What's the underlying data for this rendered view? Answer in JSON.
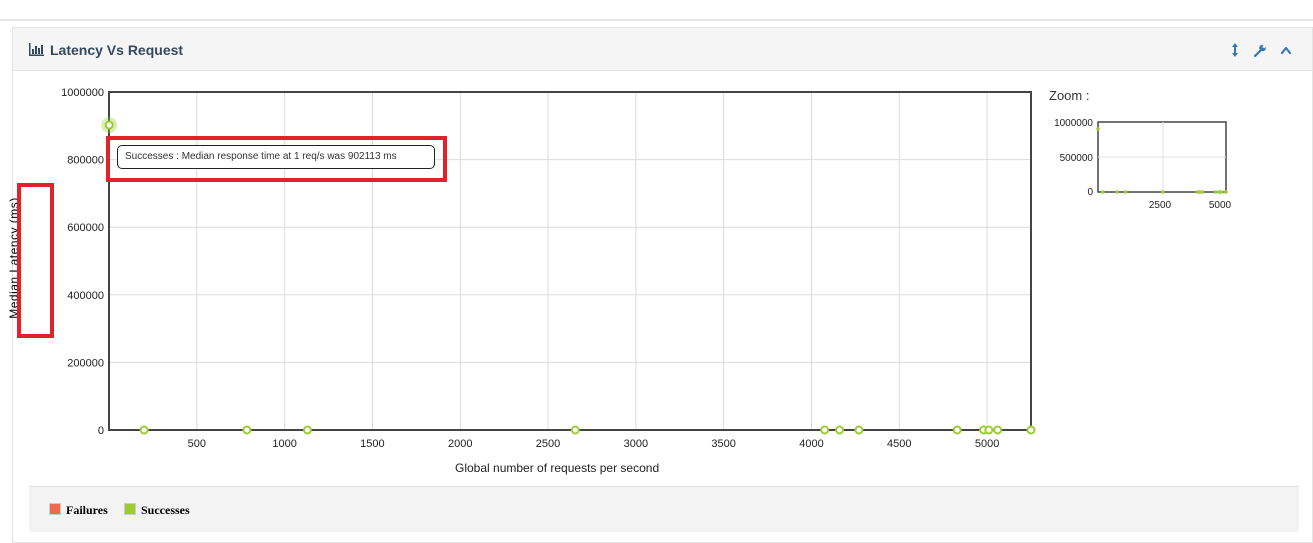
{
  "panel": {
    "title": "Latency Vs Request",
    "title_icon": "bar-chart-icon",
    "header_buttons": [
      "resize-vertical-icon",
      "wrench-icon",
      "chevron-up-icon"
    ],
    "accent_color": "#337ab7"
  },
  "tooltip": {
    "text": "Successes : Median response time at 1 req/s was 902113 ms"
  },
  "zoom": {
    "label": "Zoom :",
    "y_ticks": [
      "1000000",
      "500000",
      "0"
    ],
    "x_ticks": [
      "2500",
      "5000"
    ]
  },
  "legend": {
    "failures": "Failures",
    "successes": "Successes",
    "failures_color": "#f0684e",
    "successes_color": "#9acd32"
  },
  "chart_data": {
    "type": "scatter",
    "title": "Latency Vs Request",
    "xlabel": "Global number of requests per second",
    "ylabel": "Median Latency (ms)",
    "xlim": [
      0,
      5250
    ],
    "ylim": [
      0,
      1000000
    ],
    "x_ticks": [
      500,
      1000,
      1500,
      2000,
      2500,
      3000,
      3500,
      4000,
      4500,
      5000
    ],
    "y_ticks": [
      0,
      200000,
      400000,
      600000,
      800000,
      1000000
    ],
    "grid": true,
    "legend": "bottom-left",
    "series": [
      {
        "name": "Failures",
        "color": "#f0684e",
        "points": []
      },
      {
        "name": "Successes",
        "color": "#9acd32",
        "points": [
          {
            "x": 1,
            "y": 902113
          },
          {
            "x": 200,
            "y": 0
          },
          {
            "x": 785,
            "y": 0
          },
          {
            "x": 1130,
            "y": 0
          },
          {
            "x": 2655,
            "y": 0
          },
          {
            "x": 4075,
            "y": 0
          },
          {
            "x": 4160,
            "y": 0
          },
          {
            "x": 4270,
            "y": 0
          },
          {
            "x": 4830,
            "y": 0
          },
          {
            "x": 4980,
            "y": 0
          },
          {
            "x": 5010,
            "y": 0
          },
          {
            "x": 5060,
            "y": 0
          },
          {
            "x": 5250,
            "y": 0
          }
        ]
      }
    ]
  }
}
